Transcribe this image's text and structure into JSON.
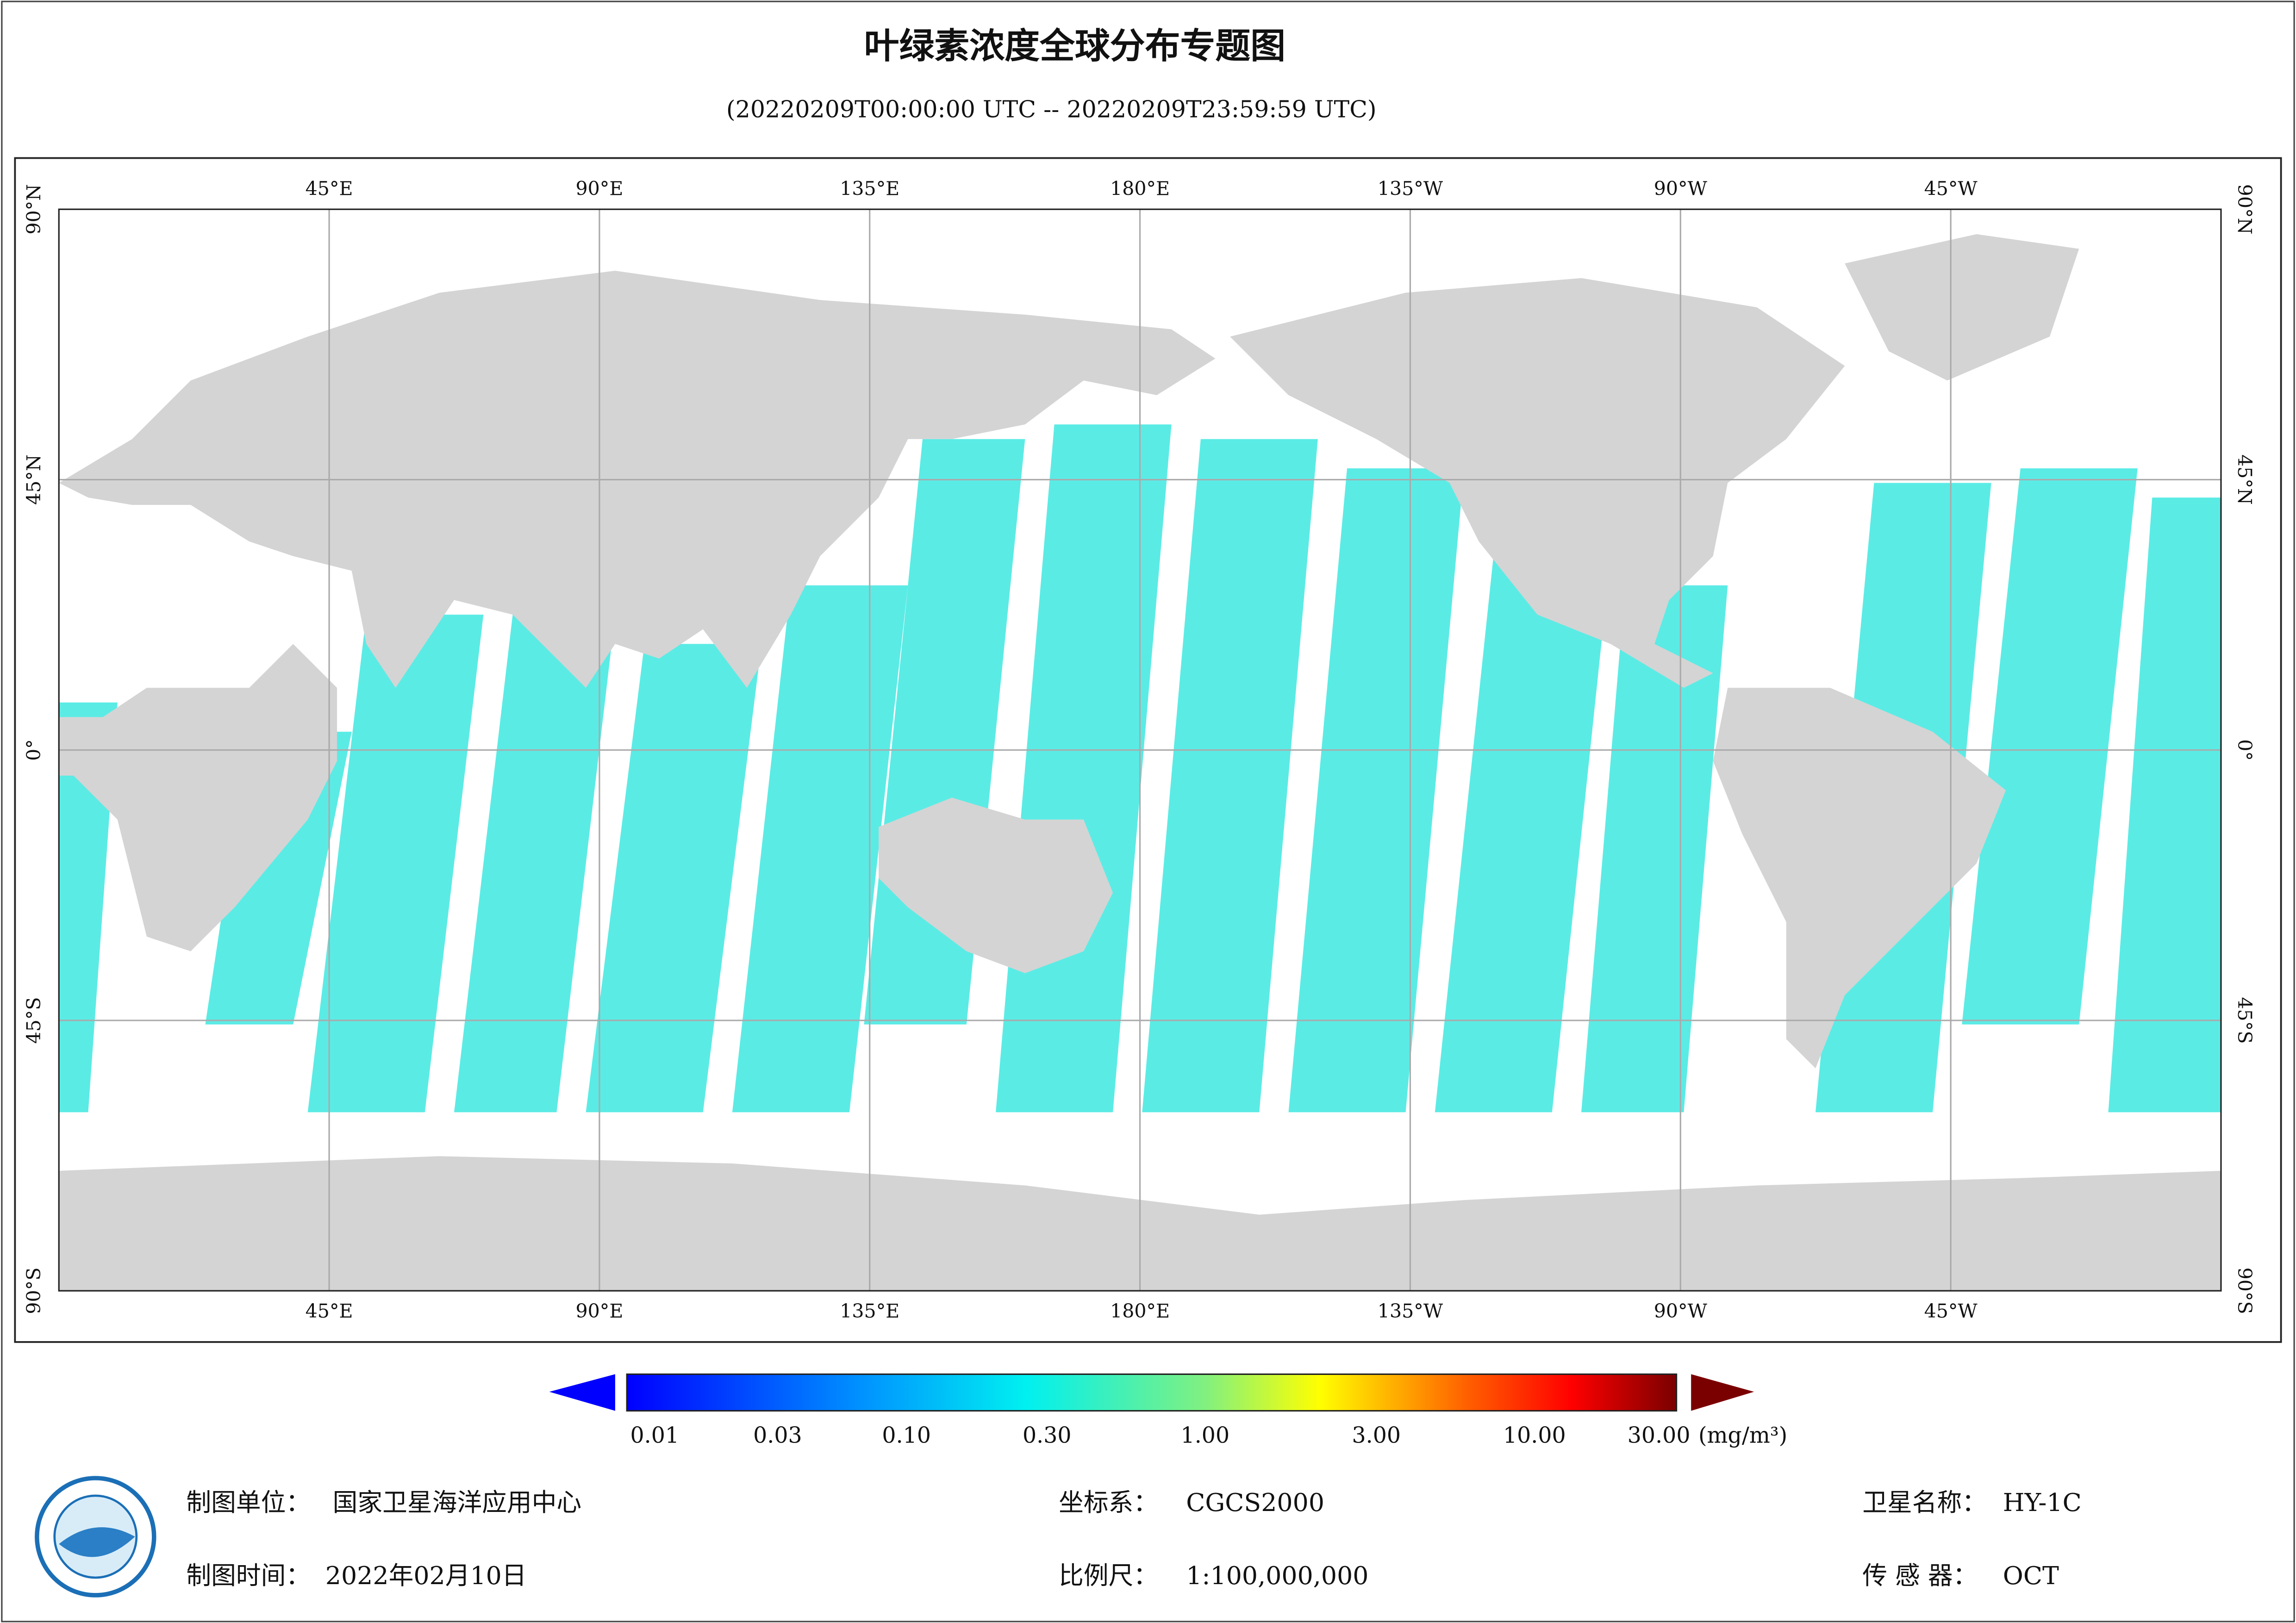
{
  "header": {
    "title": "叶绿素浓度全球分布专题图",
    "subtitle": "(20220209T00:00:00 UTC -- 20220209T23:59:59 UTC)"
  },
  "map": {
    "lon_labels": [
      "45°E",
      "90°E",
      "135°E",
      "180°E",
      "135°W",
      "90°W",
      "45°W"
    ],
    "lat_labels": [
      "90°N",
      "45°N",
      "0°",
      "45°S",
      "90°S"
    ]
  },
  "colorbar": {
    "ticks": [
      "0.01",
      "0.03",
      "0.10",
      "0.30",
      "1.00",
      "3.00",
      "10.00",
      "30.00"
    ],
    "unit": "(mg/m³)"
  },
  "footer": {
    "items": [
      {
        "label": "制图单位：",
        "value": "国家卫星海洋应用中心"
      },
      {
        "label": "制图时间：",
        "value": "2022年02月10日"
      },
      {
        "label": "坐标系：",
        "value": "CGCS2000"
      },
      {
        "label": "比例尺：",
        "value": "1:100,000,000"
      },
      {
        "label": "卫星名称：",
        "value": "HY-1C"
      },
      {
        "label": "传 感 器：",
        "value": "OCT"
      }
    ]
  }
}
